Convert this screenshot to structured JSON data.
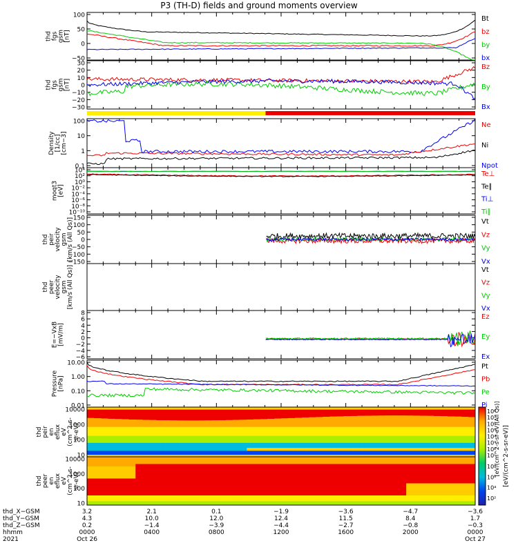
{
  "title": "P3 (TH-D) fields and ground moments overview",
  "colors": {
    "black": "#000000",
    "red": "#ee0000",
    "green": "#00cc00",
    "blue": "#0000ee",
    "yellow": "#ffee00",
    "redbar": "#ee0000"
  },
  "panels": [
    {
      "id": "fgs-gsm",
      "ylabel": [
        "thd",
        "fgs",
        "gsm",
        "[nT]"
      ],
      "ticks": [
        "100",
        "50",
        "0",
        "−50"
      ],
      "legend": [
        [
          "Bt",
          "black"
        ],
        [
          "bz",
          "red"
        ],
        [
          "by",
          "green"
        ],
        [
          "bx",
          "blue"
        ]
      ]
    },
    {
      "id": "fgs-gsm-zoom",
      "ylabel": [
        "thd",
        "fgs",
        "gsm",
        "[nT]"
      ],
      "ticks": [
        "30",
        "20",
        "10",
        "0",
        "−10",
        "−20",
        "−30"
      ],
      "legend": [
        [
          "Bz",
          "red"
        ],
        [
          "By",
          "green"
        ],
        [
          "Bx",
          "blue"
        ]
      ]
    },
    {
      "id": "density",
      "ylabel": [
        "Density",
        "[1/cc]",
        "[cm−3]"
      ],
      "ticks": [
        "100",
        "10",
        "1",
        "0.1"
      ],
      "legend": [
        [
          "Ne",
          "red"
        ],
        [
          "Ni",
          "black"
        ],
        [
          "Npot",
          "blue"
        ]
      ]
    },
    {
      "id": "temperature",
      "ylabel": [
        "moqt3",
        "[eV]"
      ],
      "ticks": [
        "10⁴",
        "10²",
        "10⁰",
        "10⁻²",
        "10⁻⁴",
        "10⁻⁶",
        "10⁻⁸",
        "10⁻¹⁰"
      ],
      "legend": [
        [
          "Te⊥",
          "red"
        ],
        [
          "Te∥",
          "black"
        ],
        [
          "Ti⊥",
          "blue"
        ],
        [
          "Ti∥",
          "green"
        ]
      ]
    },
    {
      "id": "peir-velocity",
      "ylabel": [
        "thd",
        "peir",
        "velocity",
        "gsm",
        "[km/s (All Qs)]"
      ],
      "ticks": [
        "150",
        "100",
        "50",
        "0",
        "−50",
        "−100",
        "−150"
      ],
      "legend": [
        [
          "Vt",
          "black"
        ],
        [
          "Vz",
          "red"
        ],
        [
          "Vy",
          "green"
        ],
        [
          "Vx",
          "blue"
        ]
      ]
    },
    {
      "id": "peer-velocity",
      "ylabel": [
        "thd",
        "peer",
        "velocity",
        "gsm",
        "[km/s (All Qs)]"
      ],
      "ticks": [],
      "legend": [
        [
          "Vt",
          "black"
        ],
        [
          "Vz",
          "red"
        ],
        [
          "Vy",
          "green"
        ],
        [
          "Vx",
          "blue"
        ]
      ]
    },
    {
      "id": "efield",
      "ylabel": [
        "E=−VxB",
        "[mV/m]"
      ],
      "ticks": [
        "8",
        "6",
        "4",
        "2",
        "0",
        "−2",
        "−4",
        "−6"
      ],
      "legend": [
        [
          "Ez",
          "red"
        ],
        [
          "Ey",
          "green"
        ],
        [
          "Ex",
          "blue"
        ]
      ]
    },
    {
      "id": "pressure",
      "ylabel": [
        "Pressure",
        "[nPa]"
      ],
      "ticks": [
        "10.00",
        "1.00",
        "0.10",
        "0.01"
      ],
      "legend": [
        [
          "Pt",
          "black"
        ],
        [
          "Pb",
          "red"
        ],
        [
          "Pe",
          "green"
        ],
        [
          "Pi",
          "blue"
        ]
      ]
    },
    {
      "id": "peir-spec",
      "ylabel": [
        "thd",
        "peir",
        "en",
        "eflux",
        "eV",
        "(cm^2-s-",
        "sr-eV)"
      ],
      "ticks": [
        "10000",
        "1000",
        "100",
        "10"
      ]
    },
    {
      "id": "peer-spec",
      "ylabel": [
        "thd",
        "peer",
        "en",
        "eflux",
        "eV",
        "(cm^2-s-",
        "sr-eV)"
      ],
      "ticks": [
        "10000",
        "1000",
        "100",
        "10"
      ]
    }
  ],
  "colorbar": {
    "label": "[eV/(cm^2-s-sr-eV)]",
    "label2": "[eV/(cm^2-s-sr-eV)(All Qs)]",
    "ticks_top": [
      "10⁸",
      "10⁷",
      "10⁶",
      "10⁵",
      "10⁴",
      "10³",
      "10²",
      "10¹"
    ],
    "ticks_bottom": [
      "10⁸",
      "10⁶",
      "10⁴",
      "10²"
    ]
  },
  "bar": {
    "yellow_until": 0.46
  },
  "xaxis": {
    "row_labels": [
      "thd_X−GSM",
      "thd_Y−GSM",
      "thd_Z−GSM",
      "hhmm",
      "2021"
    ],
    "columns": [
      {
        "x": "3.2",
        "y": "4.3",
        "z": "0.2",
        "hhmm": "0000",
        "date": "Oct 26"
      },
      {
        "x": "2.1",
        "y": "10.0",
        "z": "−1.4",
        "hhmm": "0400",
        "date": ""
      },
      {
        "x": "0.1",
        "y": "12.0",
        "z": "−3.9",
        "hhmm": "0800",
        "date": ""
      },
      {
        "x": "−1.9",
        "y": "12.4",
        "z": "−4.4",
        "hhmm": "1200",
        "date": ""
      },
      {
        "x": "−3.6",
        "y": "11.5",
        "z": "−2.7",
        "hhmm": "1600",
        "date": ""
      },
      {
        "x": "−4.7",
        "y": "8.4",
        "z": "−0.8",
        "hhmm": "2000",
        "date": ""
      },
      {
        "x": "−3.6",
        "y": "1.7",
        "z": "−0.3",
        "hhmm": "0000",
        "date": "Oct 27"
      }
    ]
  }
}
